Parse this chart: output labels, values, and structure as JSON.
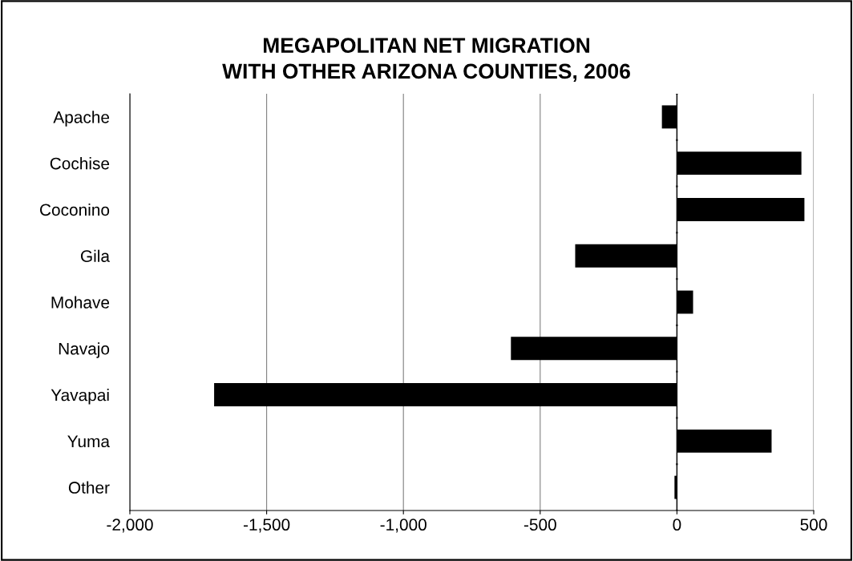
{
  "chart_data": {
    "type": "bar",
    "orientation": "horizontal",
    "title": "MEGAPOLITAN NET MIGRATION\nWITH OTHER ARIZONA COUNTIES, 2006",
    "categories": [
      "Apache",
      "Cochise",
      "Coconino",
      "Gila",
      "Mohave",
      "Navajo",
      "Yavapai",
      "Yuma",
      "Other"
    ],
    "values": [
      -55,
      455,
      466,
      -372,
      59,
      -607,
      -1692,
      346,
      -9
    ],
    "color": "#000000",
    "xlim": [
      -2000,
      500
    ],
    "xticks": [
      {
        "value": -2000,
        "label": "-2,000"
      },
      {
        "value": -1500,
        "label": "-1,500"
      },
      {
        "value": -1000,
        "label": "-1,000"
      },
      {
        "value": -500,
        "label": "-500"
      },
      0,
      500
    ],
    "grid": "x"
  }
}
